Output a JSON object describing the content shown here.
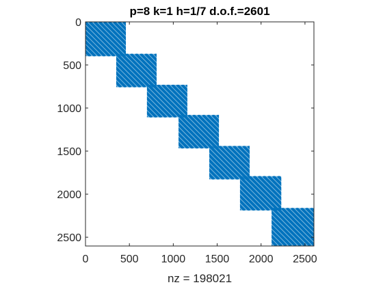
{
  "chart_data": {
    "type": "spy",
    "title": "p=8 k=1 h=1/7 d.o.f.=2601",
    "xlabel": "nz = 198021",
    "ylabel": "",
    "xlim": [
      0,
      2602
    ],
    "ylim": [
      0,
      2602
    ],
    "y_reversed": true,
    "grid": false,
    "marker_color": "#0072BD",
    "x_ticks": [
      0,
      500,
      1000,
      1500,
      2000,
      2500
    ],
    "y_ticks": [
      0,
      500,
      1000,
      1500,
      2000,
      2500
    ],
    "blocks": [
      {
        "row_start": 1,
        "row_end": 400,
        "col_start": 1,
        "col_end": 460
      },
      {
        "row_start": 370,
        "row_end": 760,
        "col_start": 350,
        "col_end": 810
      },
      {
        "row_start": 730,
        "row_end": 1110,
        "col_start": 700,
        "col_end": 1160
      },
      {
        "row_start": 1080,
        "row_end": 1470,
        "col_start": 1060,
        "col_end": 1520
      },
      {
        "row_start": 1440,
        "row_end": 1830,
        "col_start": 1410,
        "col_end": 1870
      },
      {
        "row_start": 1790,
        "row_end": 2190,
        "col_start": 1760,
        "col_end": 2230
      },
      {
        "row_start": 2160,
        "row_end": 2601,
        "col_start": 2120,
        "col_end": 2601
      }
    ],
    "stripe_spacing": 55,
    "nz": 198021
  }
}
